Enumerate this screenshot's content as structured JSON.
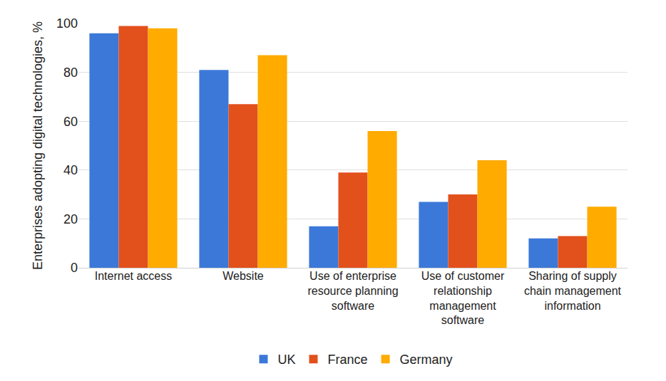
{
  "chart_data": {
    "type": "bar",
    "y_label": "Enterprises adopting digital technologies, %",
    "categories": [
      "Internet access",
      "Website",
      "Use of enterprise resource planning software",
      "Use of customer relationship management software",
      "Sharing of supply chain management information"
    ],
    "series": [
      {
        "name": "UK",
        "color": "#3c78d8",
        "values": [
          96,
          81,
          17,
          27,
          12
        ]
      },
      {
        "name": "France",
        "color": "#e2501c",
        "values": [
          99,
          67,
          39,
          30,
          13
        ]
      },
      {
        "name": "Germany",
        "color": "#ffab00",
        "values": [
          98,
          87,
          56,
          44,
          25
        ]
      }
    ],
    "ylim": [
      0,
      100
    ],
    "yticks": [
      0,
      20,
      40,
      60,
      80,
      100
    ],
    "grid": true,
    "legend": "bottom"
  }
}
